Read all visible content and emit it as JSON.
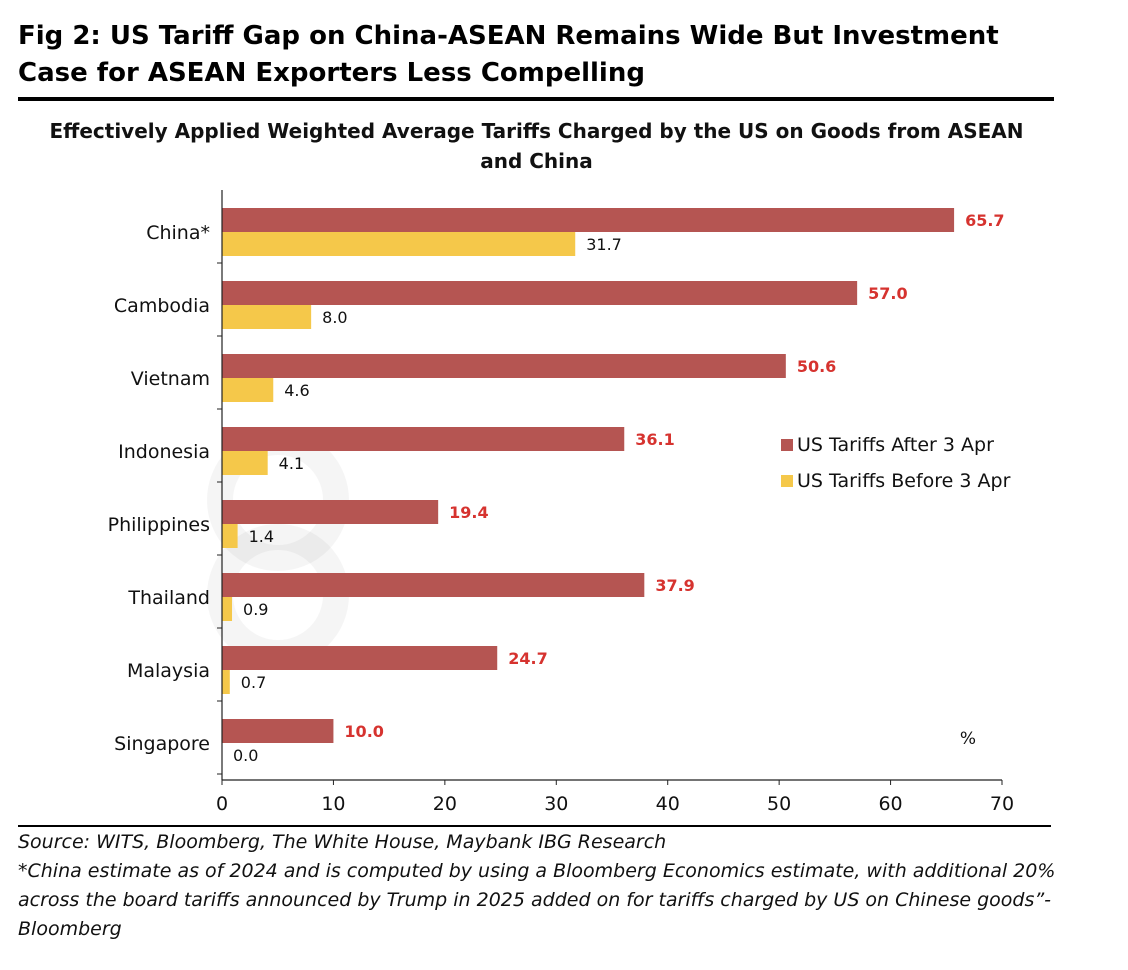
{
  "figure": {
    "title": "Fig 2: US Tariff Gap on China-ASEAN Remains Wide But Investment Case for ASEAN Exporters Less Compelling"
  },
  "footer": {
    "source": "Source: WITS, Bloomberg, The White House, Maybank IBG Research",
    "note": "*China estimate as of 2024 and is computed by using a Bloomberg Economics estimate, with additional 20% across the board tariffs announced by Trump in 2025 added on for tariffs charged by US on Chinese goods”- Bloomberg"
  },
  "chart_data": {
    "type": "bar",
    "orientation": "horizontal",
    "title": "Effectively Applied Weighted Average Tariffs Charged by the US on Goods from ASEAN and China",
    "unit_label": "%",
    "categories": [
      "China*",
      "Cambodia",
      "Vietnam",
      "Indonesia",
      "Philippines",
      "Thailand",
      "Malaysia",
      "Singapore"
    ],
    "series": [
      {
        "name": "US Tariffs After 3 Apr",
        "color": "#b55552",
        "label_color": "#d6332f",
        "values": [
          65.7,
          57.0,
          50.6,
          36.1,
          19.4,
          37.9,
          24.7,
          10.0
        ]
      },
      {
        "name": "US Tariffs Before 3 Apr",
        "color": "#f5c84a",
        "label_color": "#111111",
        "values": [
          31.7,
          8.0,
          4.6,
          4.1,
          1.4,
          0.9,
          0.7,
          0.0
        ]
      }
    ],
    "xlim": [
      0,
      70
    ],
    "xticks": [
      0,
      10,
      20,
      30,
      40,
      50,
      60,
      70
    ],
    "grid": false,
    "legend_position": "right"
  }
}
